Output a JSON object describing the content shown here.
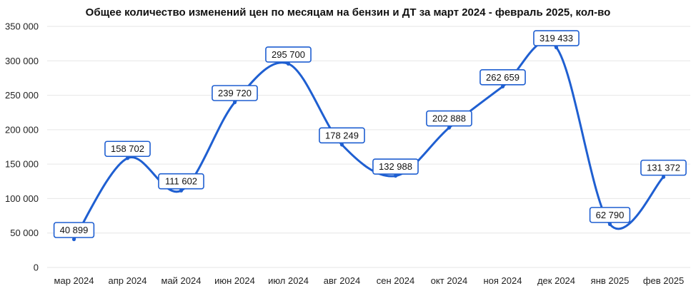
{
  "chart_data": {
    "type": "line",
    "title": "Общее количество изменений цен по месяцам на бензин и ДТ за март 2024 - февраль 2025, кол-во",
    "xlabel": "",
    "ylabel": "",
    "categories": [
      "мар 2024",
      "апр 2024",
      "май 2024",
      "июн 2024",
      "июл 2024",
      "авг 2024",
      "сен 2024",
      "окт 2024",
      "ноя 2024",
      "дек 2024",
      "янв 2025",
      "фев 2025"
    ],
    "values": [
      40899,
      158702,
      111602,
      239720,
      295700,
      178249,
      132988,
      202888,
      262659,
      319433,
      62790,
      131372
    ],
    "data_labels": [
      "40 899",
      "158 702",
      "111 602",
      "239 720",
      "295 700",
      "178 249",
      "132 988",
      "202 888",
      "262 659",
      "319 433",
      "62 790",
      "131 372"
    ],
    "yticks": [
      0,
      50000,
      100000,
      150000,
      200000,
      250000,
      300000,
      350000
    ],
    "ytick_labels": [
      "0",
      "50 000",
      "100 000",
      "150 000",
      "200 000",
      "250 000",
      "300 000",
      "350 000"
    ],
    "ylim": [
      0,
      350000
    ],
    "grid": true,
    "legend": "none",
    "line_color": "#1f5fd1",
    "smooth": true
  }
}
